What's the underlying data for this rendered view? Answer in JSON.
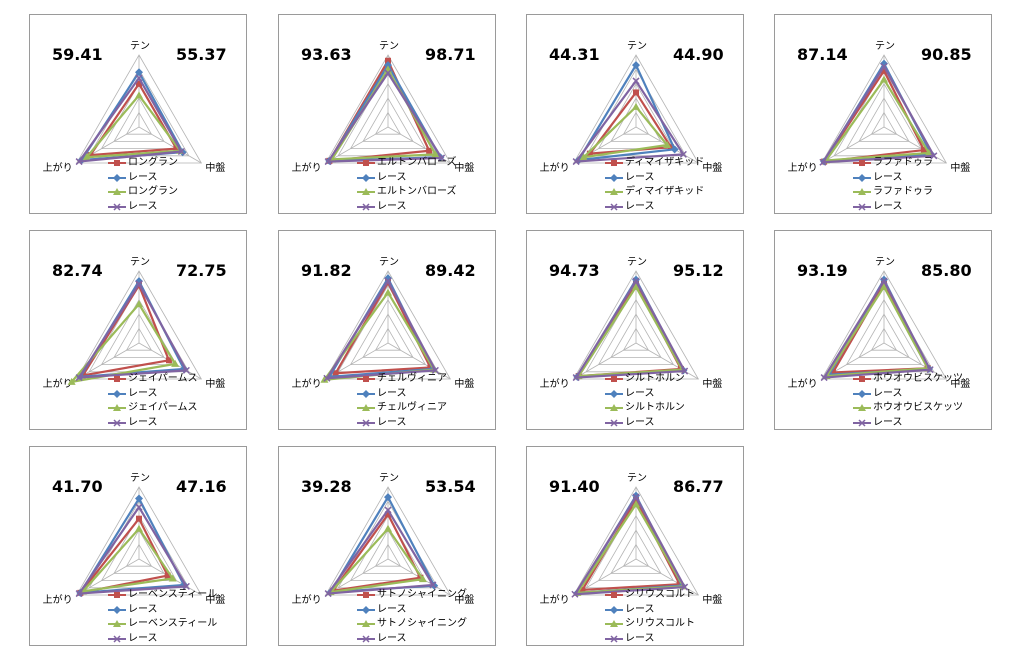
{
  "axes": [
    "テン",
    "中盤",
    "上がり"
  ],
  "rlim": [
    0,
    100
  ],
  "series_colors": [
    "#c0504d",
    "#4f81bd",
    "#9bbb59",
    "#8064a2"
  ],
  "chart_data": [
    {
      "type": "radar",
      "axes": [
        "テン",
        "中盤",
        "上がり"
      ],
      "left_value": "59.41",
      "right_value": "55.37",
      "series": [
        {
          "name": "ロングラン",
          "values": [
            60,
            60,
            78
          ]
        },
        {
          "name": "レース",
          "values": [
            76,
            70,
            92
          ]
        },
        {
          "name": "ロングラン",
          "values": [
            44,
            66,
            84
          ]
        },
        {
          "name": "レース",
          "values": [
            68,
            68,
            96
          ]
        }
      ]
    },
    {
      "type": "radar",
      "axes": [
        "テン",
        "中盤",
        "上がり"
      ],
      "left_value": "93.63",
      "right_value": "98.71",
      "series": [
        {
          "name": "エルトンバローズ",
          "values": [
            92,
            66,
            94
          ]
        },
        {
          "name": "レース",
          "values": [
            86,
            84,
            94
          ]
        },
        {
          "name": "エルトンバローズ",
          "values": [
            80,
            76,
            90
          ]
        },
        {
          "name": "レース",
          "values": [
            75,
            86,
            96
          ]
        }
      ]
    },
    {
      "type": "radar",
      "axes": [
        "テン",
        "中盤",
        "上がり"
      ],
      "left_value": "44.31",
      "right_value": "44.90",
      "series": [
        {
          "name": "ディマイザキッド",
          "values": [
            48,
            56,
            74
          ]
        },
        {
          "name": "レース",
          "values": [
            86,
            62,
            92
          ]
        },
        {
          "name": "ディマイザキッド",
          "values": [
            28,
            50,
            84
          ]
        },
        {
          "name": "レース",
          "values": [
            64,
            76,
            96
          ]
        }
      ]
    },
    {
      "type": "radar",
      "axes": [
        "テン",
        "中盤",
        "上がり"
      ],
      "left_value": "87.14",
      "right_value": "90.85",
      "series": [
        {
          "name": "ラファドゥラ",
          "values": [
            78,
            64,
            96
          ]
        },
        {
          "name": "レース",
          "values": [
            88,
            76,
            96
          ]
        },
        {
          "name": "ラファドゥラ",
          "values": [
            66,
            72,
            93
          ]
        },
        {
          "name": "レース",
          "values": [
            84,
            80,
            98
          ]
        }
      ]
    },
    {
      "type": "radar",
      "axes": [
        "テン",
        "中盤",
        "上がり"
      ],
      "left_value": "82.74",
      "right_value": "72.75",
      "series": [
        {
          "name": "ジェイパームス",
          "values": [
            80,
            48,
            90
          ]
        },
        {
          "name": "レース",
          "values": [
            86,
            72,
            94
          ]
        },
        {
          "name": "ジェイパームス",
          "values": [
            54,
            58,
            108
          ]
        },
        {
          "name": "レース",
          "values": [
            82,
            76,
            96
          ]
        }
      ]
    },
    {
      "type": "radar",
      "axes": [
        "テン",
        "中盤",
        "上がり"
      ],
      "left_value": "91.82",
      "right_value": "89.42",
      "series": [
        {
          "name": "チェルヴィニア",
          "values": [
            84,
            68,
            84
          ]
        },
        {
          "name": "レース",
          "values": [
            90,
            72,
            94
          ]
        },
        {
          "name": "チェルヴィニア",
          "values": [
            70,
            74,
            102
          ]
        },
        {
          "name": "レース",
          "values": [
            86,
            76,
            98
          ]
        }
      ]
    },
    {
      "type": "radar",
      "axes": [
        "テン",
        "中盤",
        "上がり"
      ],
      "left_value": "94.73",
      "right_value": "95.12",
      "series": [
        {
          "name": "シルトホルン",
          "values": [
            82,
            72,
            92
          ]
        },
        {
          "name": "レース",
          "values": [
            88,
            76,
            94
          ]
        },
        {
          "name": "シルトホルン",
          "values": [
            78,
            74,
            92
          ]
        },
        {
          "name": "レース",
          "values": [
            86,
            78,
            96
          ]
        }
      ]
    },
    {
      "type": "radar",
      "axes": [
        "テン",
        "中盤",
        "上がり"
      ],
      "left_value": "93.19",
      "right_value": "85.80",
      "series": [
        {
          "name": "ホウオウビスケッツ",
          "values": [
            82,
            70,
            82
          ]
        },
        {
          "name": "レース",
          "values": [
            88,
            72,
            88
          ]
        },
        {
          "name": "ホウオウビスケッツ",
          "values": [
            78,
            70,
            92
          ]
        },
        {
          "name": "レース",
          "values": [
            86,
            74,
            96
          ]
        }
      ]
    },
    {
      "type": "radar",
      "axes": [
        "テン",
        "中盤",
        "上がり"
      ],
      "left_value": "41.70",
      "right_value": "47.16",
      "series": [
        {
          "name": "レーベンスティール",
          "values": [
            56,
            46,
            94
          ]
        },
        {
          "name": "レース",
          "values": [
            84,
            72,
            94
          ]
        },
        {
          "name": "レーベンスティール",
          "values": [
            42,
            54,
            90
          ]
        },
        {
          "name": "レース",
          "values": [
            72,
            76,
            96
          ]
        }
      ]
    },
    {
      "type": "radar",
      "axes": [
        "テン",
        "中盤",
        "上がり"
      ],
      "left_value": "39.28",
      "right_value": "53.54",
      "series": [
        {
          "name": "サトノシャイニング",
          "values": [
            62,
            52,
            88
          ]
        },
        {
          "name": "レース",
          "values": [
            86,
            74,
            92
          ]
        },
        {
          "name": "サトノシャイニング",
          "values": [
            42,
            56,
            92
          ]
        },
        {
          "name": "レース",
          "values": [
            68,
            72,
            96
          ]
        }
      ]
    },
    {
      "type": "radar",
      "axes": [
        "テン",
        "中盤",
        "上がり"
      ],
      "left_value": "91.40",
      "right_value": "86.77",
      "series": [
        {
          "name": "シリウスコルト",
          "values": [
            82,
            70,
            86
          ]
        },
        {
          "name": "レース",
          "values": [
            88,
            74,
            94
          ]
        },
        {
          "name": "シリウスコルト",
          "values": [
            76,
            76,
            94
          ]
        },
        {
          "name": "レース",
          "values": [
            86,
            78,
            98
          ]
        }
      ]
    }
  ]
}
